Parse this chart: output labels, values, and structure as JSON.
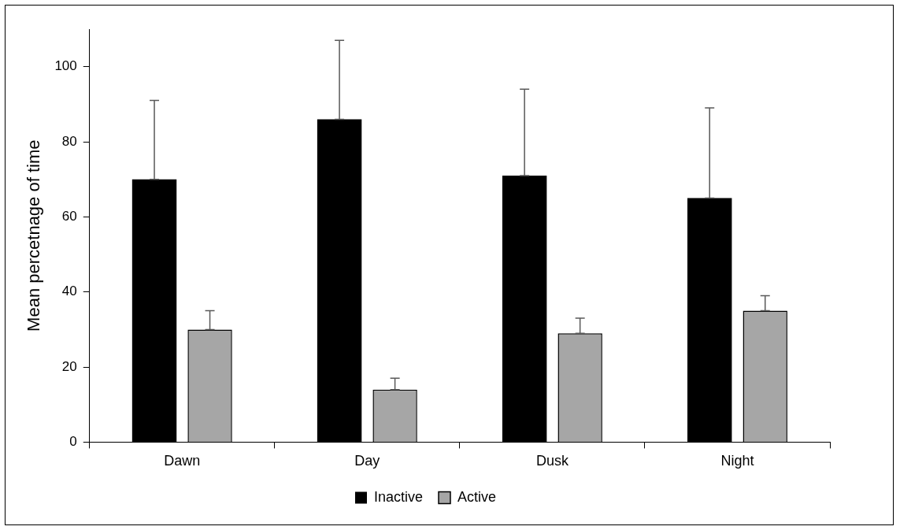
{
  "chart_data": {
    "type": "bar",
    "ylabel": "Mean percetnage of time",
    "categories": [
      "Dawn",
      "Day",
      "Dusk",
      "Night"
    ],
    "series": [
      {
        "name": "Inactive",
        "color": "#000000",
        "values": [
          70,
          86,
          71,
          65
        ],
        "errors": [
          [
            70,
            91
          ],
          [
            86,
            107
          ],
          [
            71,
            94
          ],
          [
            65,
            89
          ]
        ]
      },
      {
        "name": "Active",
        "color": "#a6a6a6",
        "values": [
          30,
          14,
          29,
          35
        ],
        "errors": [
          [
            30,
            35
          ],
          [
            14,
            17
          ],
          [
            29,
            33
          ],
          [
            35,
            39
          ]
        ]
      }
    ],
    "ylim": [
      0,
      110
    ],
    "yticks": [
      0,
      20,
      40,
      60,
      80,
      100
    ],
    "grid": false,
    "legend": "bottom"
  }
}
